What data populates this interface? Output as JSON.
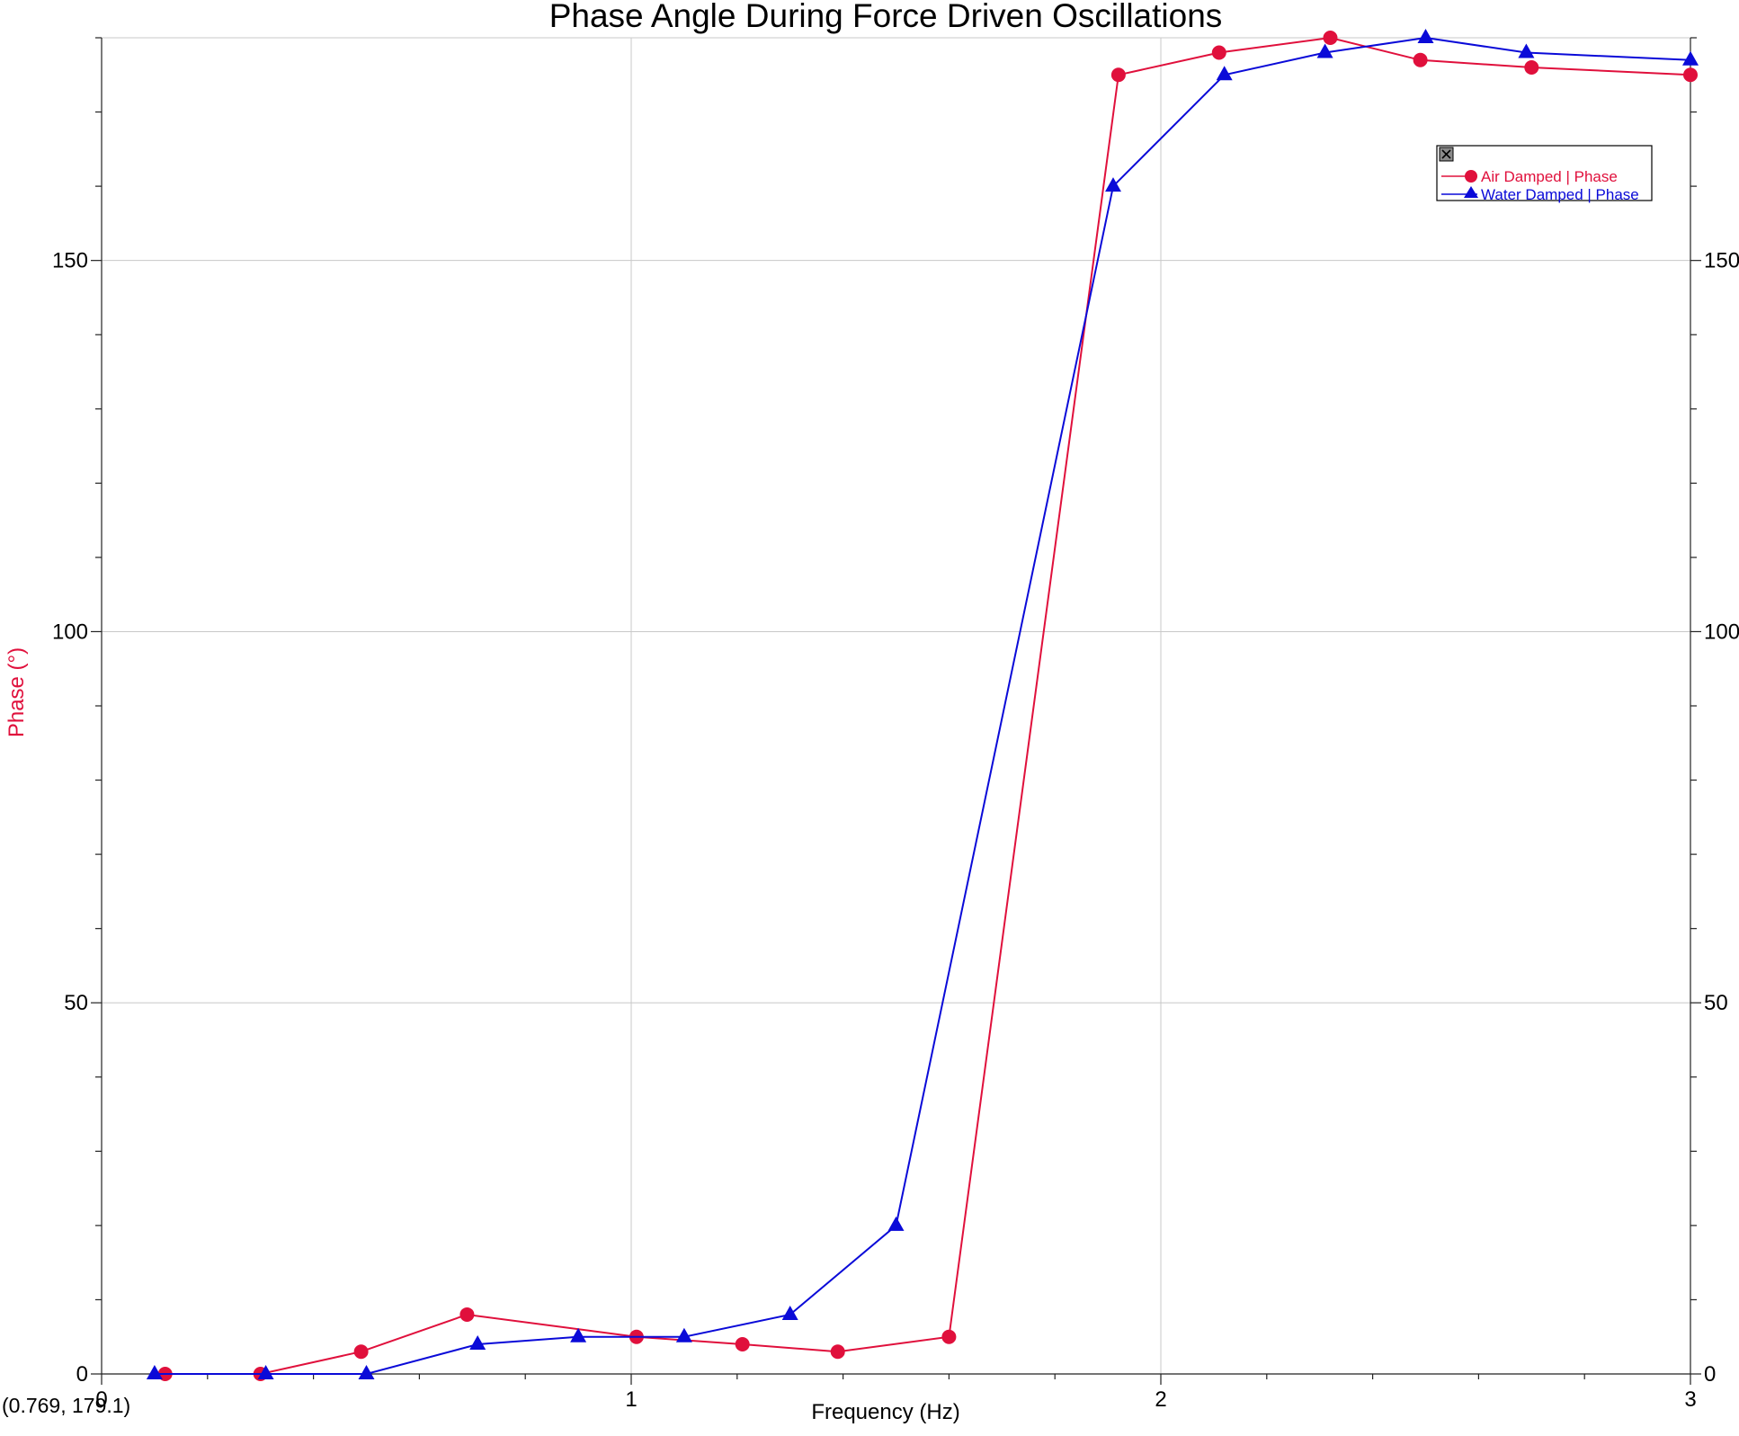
{
  "chart_data": {
    "type": "line",
    "title": "Phase Angle During Force Driven Oscillations",
    "xlabel": "Frequency (Hz)",
    "ylabel": "Phase (°)",
    "xlim": [
      0,
      3
    ],
    "ylim": [
      0,
      180
    ],
    "x_major_ticks": [
      0,
      1,
      2,
      3
    ],
    "x_major_labels": [
      "0",
      "1",
      "2",
      "3"
    ],
    "y_major_ticks": [
      0,
      50,
      100,
      150
    ],
    "y_major_labels": [
      "0",
      "50",
      "100",
      "150"
    ],
    "y_right_labels": [
      "0",
      "50",
      "100",
      "150"
    ],
    "grid": true,
    "legend_position": "top-right",
    "cursor_readout": "(0.769, 179.1)",
    "colors": {
      "air": "#e0103c",
      "water": "#0a0ad8"
    },
    "series": [
      {
        "name": "Air Damped | Phase",
        "marker": "circle",
        "color": "#e0103c",
        "x": [
          0.12,
          0.3,
          0.49,
          0.69,
          1.01,
          1.21,
          1.39,
          1.6,
          1.92,
          2.11,
          2.32,
          2.49,
          2.7,
          3.0
        ],
        "y": [
          0,
          0,
          3,
          8,
          5,
          4,
          3,
          5,
          175,
          178,
          180,
          177,
          176,
          175
        ]
      },
      {
        "name": "Water Damped | Phase",
        "marker": "triangle",
        "color": "#0a0ad8",
        "x": [
          0.1,
          0.31,
          0.5,
          0.71,
          0.9,
          1.1,
          1.3,
          1.5,
          1.91,
          2.12,
          2.31,
          2.5,
          2.69,
          3.0
        ],
        "y": [
          0,
          0,
          0,
          4,
          5,
          5,
          8,
          20,
          160,
          175,
          178,
          180,
          178,
          177
        ]
      }
    ]
  }
}
